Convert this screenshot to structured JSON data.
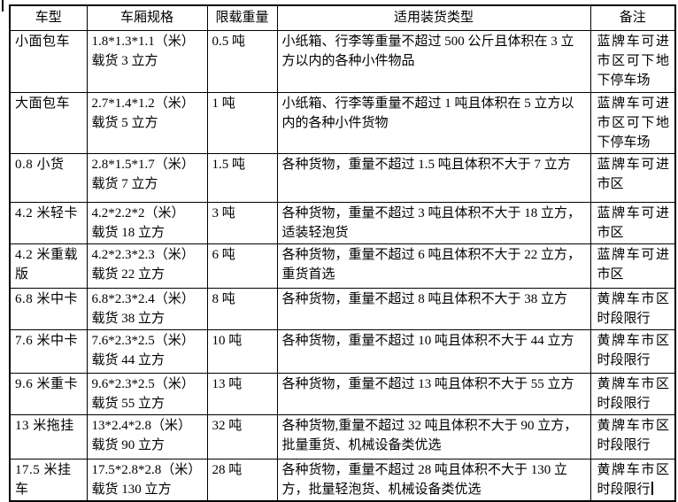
{
  "colors": {
    "background": "#ffffff",
    "text": "#000000",
    "border": "#000000"
  },
  "table": {
    "headers": [
      "车型",
      "车厢规格",
      "限载重量",
      "适用装货类型",
      "备注"
    ],
    "rows": [
      {
        "vehicle": "小面包车",
        "spec": "1.8*1.3*1.1（米）\n载货 3 立方",
        "load": "0.5 吨",
        "cargo": "小纸箱、行李等重量不超过 500 公斤且体积在 3 立方以内的各种小件物品",
        "note": "蓝牌车可进市区可下地下停车场",
        "caret": false
      },
      {
        "vehicle": "大面包车",
        "spec": "2.7*1.4*1.2（米）\n载货 5 立方",
        "load": "1 吨",
        "cargo": "小纸箱、行李等重量不超过 1 吨且体积在 5 立方以内的各种小件货物",
        "note": "蓝牌车可进市区可下地下停车场",
        "caret": false
      },
      {
        "vehicle": "0.8 小货",
        "spec": "2.8*1.5*1.7（米）\n载货 7 立方",
        "load": "1.5 吨",
        "cargo": "各种货物，重量不超过 1.5 吨且体积不大于 7 立方",
        "note": "蓝牌车可进市区",
        "caret": false
      },
      {
        "vehicle": "4.2 米轻卡",
        "spec": "4.2*2.2*2（米）\n载货 18 立方",
        "load": "3 吨",
        "cargo": "各种货物，重量不超过 3 吨且体积不大于 18 立方，适装轻泡货",
        "note": "蓝牌车可进市区",
        "caret": false
      },
      {
        "vehicle": "4.2 米重载版",
        "spec": "4.2*2.3*2.3（米）\n载货 22 立方",
        "load": "6 吨",
        "cargo": "各种货物，重量不超过 6 吨且体积不大于 22 立方，重货首选",
        "note": "蓝牌车可进市区",
        "caret": false
      },
      {
        "vehicle": "6.8 米中卡",
        "spec": "6.8*2.3*2.4（米）\n载货 38 立方",
        "load": "8 吨",
        "cargo": "各种货物，重量不超过 8 吨且体积不大于 38 立方",
        "note": "黄牌车市区时段限行",
        "caret": false
      },
      {
        "vehicle": "7.6 米中卡",
        "spec": "7.6*2.3*2.5（米）\n载货 44 立方",
        "load": "10 吨",
        "cargo": "各种货物，重量不超过 10 吨且体积不大于 44 立方",
        "note": "黄牌车市区时段限行",
        "caret": false
      },
      {
        "vehicle": "9.6 米重卡",
        "spec": "9.6*2.3*2.5（米）\n载货 55 立方",
        "load": "13 吨",
        "cargo": "各种货物，重量不超过 13 吨且体积不大于 55 立方",
        "note": "黄牌车市区时段限行",
        "caret": false
      },
      {
        "vehicle": "13 米拖挂",
        "spec": "13*2.4*2.8（米）\n载货 90 立方",
        "load": "32 吨",
        "cargo": "各种货物,重量不超过 32 吨且体积不大于 90 立方，批量重货、机械设备类优选",
        "note": "黄牌车市区时段限行",
        "caret": false
      },
      {
        "vehicle": "17.5 米挂车",
        "spec": "17.5*2.8*2.8（米）\n载货 130 立方",
        "load": "28 吨",
        "cargo": "各种货物，重量不超过 28 吨且体积不大于 130 立方，批量轻泡货、机械设备类优选",
        "note": "黄牌车市区时段限行",
        "caret": true
      }
    ]
  }
}
